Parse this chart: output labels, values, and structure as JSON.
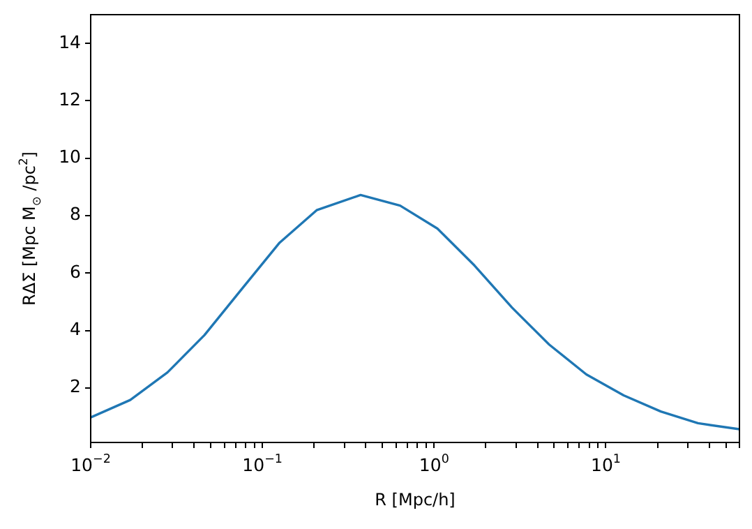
{
  "chart_data": {
    "type": "line",
    "xlabel": "R [Mpc/h]",
    "ylabel": "RΔΣ [Mpc M$_{⊙}$ /pc$^{2}$]",
    "log": "x",
    "marker": "none",
    "line_style": "solid",
    "xlim": [
      0.01,
      60
    ],
    "ylim": [
      0.1,
      15
    ],
    "xticks": [
      {
        "value": 0.01,
        "label": "10$^{−2}$"
      },
      {
        "value": 0.02,
        "label": null
      },
      {
        "value": 0.03,
        "label": null
      },
      {
        "value": 0.04,
        "label": null
      },
      {
        "value": 0.05,
        "label": null
      },
      {
        "value": 0.06,
        "label": null
      },
      {
        "value": 0.07,
        "label": null
      },
      {
        "value": 0.08,
        "label": null
      },
      {
        "value": 0.09,
        "label": null
      },
      {
        "value": 0.1,
        "label": "10$^{−1}$"
      },
      {
        "value": 0.2,
        "label": null
      },
      {
        "value": 0.3,
        "label": null
      },
      {
        "value": 0.4,
        "label": null
      },
      {
        "value": 0.5,
        "label": null
      },
      {
        "value": 0.6,
        "label": null
      },
      {
        "value": 0.7,
        "label": null
      },
      {
        "value": 0.8,
        "label": null
      },
      {
        "value": 0.9,
        "label": null
      },
      {
        "value": 1,
        "label": "10$^{0}$"
      },
      {
        "value": 2,
        "label": null
      },
      {
        "value": 3,
        "label": null
      },
      {
        "value": 4,
        "label": null
      },
      {
        "value": 5,
        "label": null
      },
      {
        "value": 6,
        "label": null
      },
      {
        "value": 7,
        "label": null
      },
      {
        "value": 8,
        "label": null
      },
      {
        "value": 9,
        "label": null
      },
      {
        "value": 10,
        "label": "10$^{1}$"
      },
      {
        "value": 20,
        "label": null
      },
      {
        "value": 30,
        "label": null
      },
      {
        "value": 40,
        "label": null
      },
      {
        "value": 50,
        "label": null
      },
      {
        "value": 60,
        "label": null
      }
    ],
    "yticks": [
      2,
      4,
      6,
      8,
      10,
      12,
      14
    ],
    "series": [
      {
        "color": "#1f77b4",
        "x": [
          0.01,
          0.017,
          0.028,
          0.046,
          0.076,
          0.126,
          0.207,
          0.373,
          0.634,
          1.045,
          1.72,
          2.84,
          4.68,
          7.7,
          12.7,
          20.9,
          34.4,
          60
        ],
        "values": [
          0.97,
          1.58,
          2.54,
          3.84,
          5.45,
          7.06,
          8.19,
          8.72,
          8.35,
          7.55,
          6.26,
          4.8,
          3.51,
          2.47,
          1.74,
          1.18,
          0.77,
          0.56
        ]
      }
    ]
  }
}
